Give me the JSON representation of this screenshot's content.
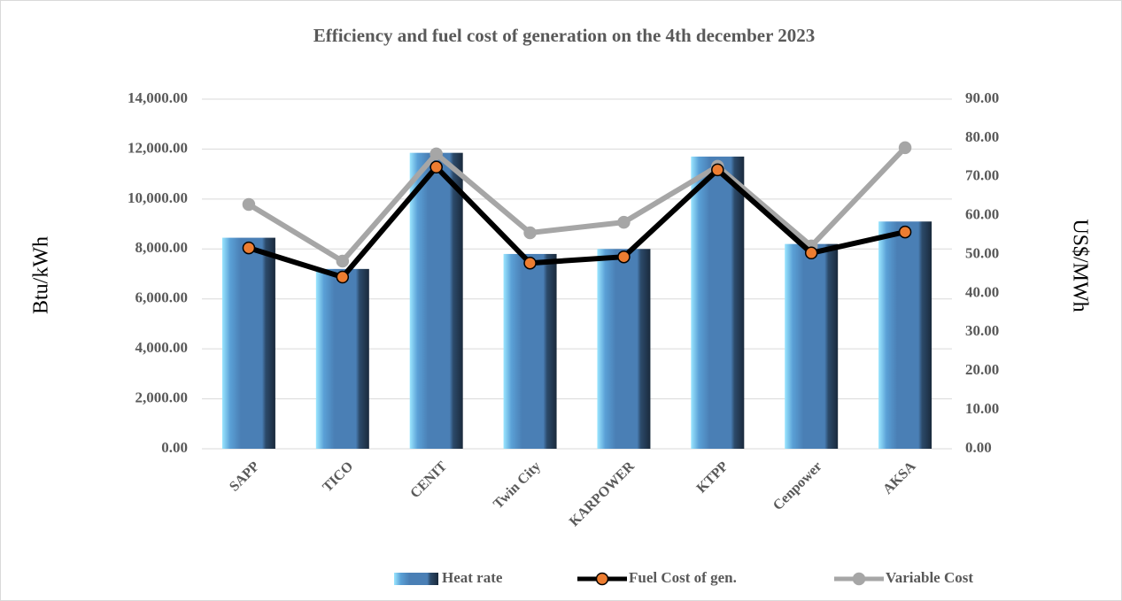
{
  "chart_data": {
    "type": "bar-line",
    "title": "Efficiency and fuel cost of generation on the 4th december  2023",
    "y_label": "Btu/kWh",
    "y2_label": "US$/MWh",
    "categories": [
      "SAPP",
      "TICO",
      "CENIT",
      "Twin City",
      "KARPOWER",
      "KTPP",
      "Cenpower",
      "AKSA"
    ],
    "series": [
      {
        "name": "Heat rate",
        "type": "bar",
        "color": "#4a7fb5",
        "values": [
          8450,
          7200,
          11850,
          7800,
          8000,
          11700,
          8200,
          9100
        ]
      },
      {
        "name": "Fuel Cost of gen.",
        "type": "line",
        "color": "#000000",
        "marker_color": "#ed7d31",
        "axis": "y2",
        "values": [
          51.7,
          44.2,
          72.5,
          47.8,
          49.4,
          71.8,
          50.4,
          55.8
        ]
      },
      {
        "name": "Variable Cost",
        "type": "line",
        "color": "#a6a6a6",
        "marker_color": "#a6a6a6",
        "axis": "y2",
        "values": [
          62.9,
          48.3,
          75.9,
          55.6,
          58.3,
          72.7,
          52.2,
          77.5
        ]
      }
    ],
    "ylim": [
      0,
      14000
    ],
    "yticks": [
      {
        "value": 0,
        "label": "0.00"
      },
      {
        "value": 2000,
        "label": "2,000.00"
      },
      {
        "value": 4000,
        "label": "4,000.00"
      },
      {
        "value": 6000,
        "label": "6,000.00"
      },
      {
        "value": 8000,
        "label": "8,000.00"
      },
      {
        "value": 10000,
        "label": "10,000.00"
      },
      {
        "value": 12000,
        "label": "12,000.00"
      },
      {
        "value": 14000,
        "label": "14,000.00"
      }
    ],
    "y2lim": [
      0,
      90
    ],
    "y2ticks": [
      {
        "value": 0,
        "label": "0.00"
      },
      {
        "value": 10,
        "label": "10.00"
      },
      {
        "value": 20,
        "label": "20.00"
      },
      {
        "value": 30,
        "label": "30.00"
      },
      {
        "value": 40,
        "label": "40.00"
      },
      {
        "value": 50,
        "label": "50.00"
      },
      {
        "value": 60,
        "label": "60.00"
      },
      {
        "value": 70,
        "label": "70.00"
      },
      {
        "value": 80,
        "label": "80.00"
      },
      {
        "value": 90,
        "label": "90.00"
      }
    ],
    "grid": true,
    "legend": "bottom"
  }
}
